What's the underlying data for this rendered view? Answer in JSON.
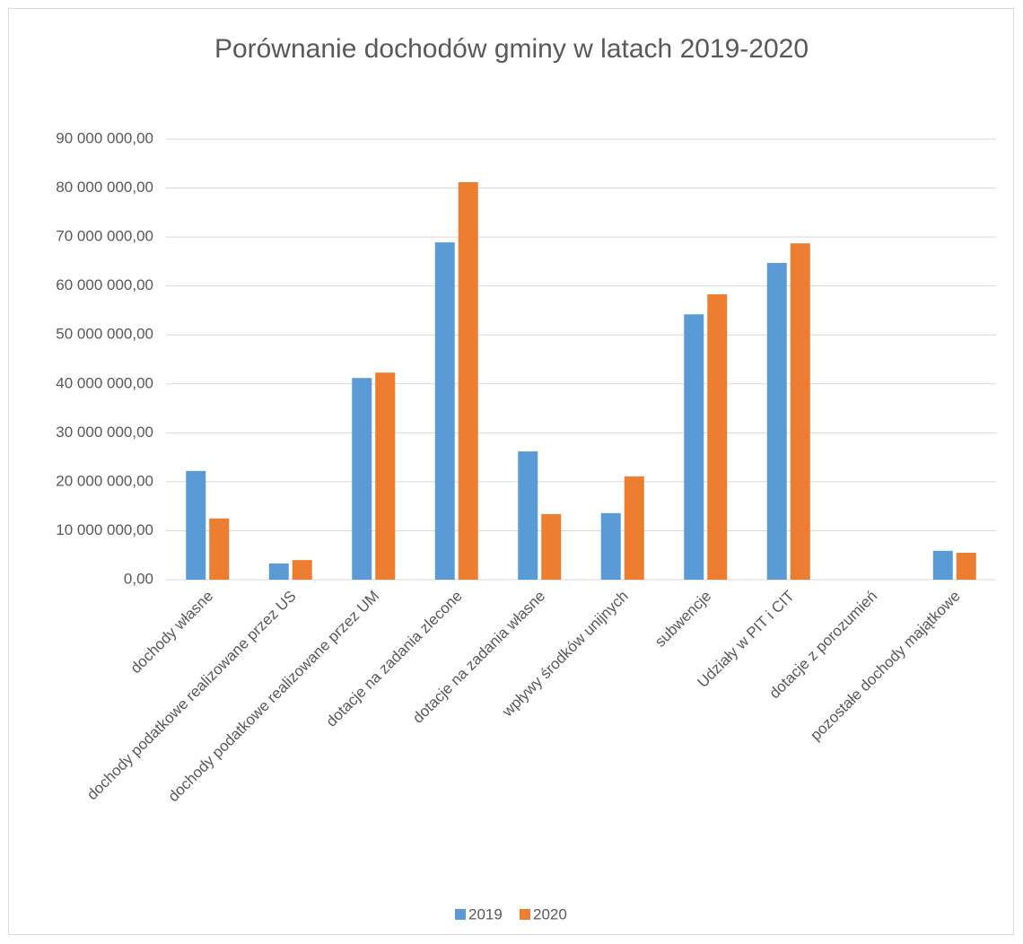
{
  "chart_data": {
    "type": "bar",
    "title": "Porównanie dochodów gminy w latach 2019-2020",
    "categories": [
      "dochody własne",
      "dochody podatkowe realizowane przez US",
      "dochody podatkowe realizowane przez UM",
      "dotacje na zadania zlecone",
      "dotacje na zadania własne",
      "wpływy środków unijnych",
      "subwencje",
      "Udziały w PIT i CIT",
      "dotacje z porozumień",
      "pozostałe dochody majątkowe"
    ],
    "series": [
      {
        "name": "2019",
        "color": "#5b9bd5",
        "values": [
          22200000,
          3300000,
          41200000,
          68900000,
          26200000,
          13600000,
          54200000,
          64700000,
          0,
          5900000
        ]
      },
      {
        "name": "2020",
        "color": "#ed7d31",
        "values": [
          12500000,
          4000000,
          42300000,
          81200000,
          13400000,
          21100000,
          58300000,
          68700000,
          0,
          5500000
        ]
      }
    ],
    "ylim": [
      0,
      90000000
    ],
    "yticks": [
      {
        "value": 0,
        "label": "0,00"
      },
      {
        "value": 10000000,
        "label": "10 000 000,00"
      },
      {
        "value": 20000000,
        "label": "20 000 000,00"
      },
      {
        "value": 30000000,
        "label": "30 000 000,00"
      },
      {
        "value": 40000000,
        "label": "40 000 000,00"
      },
      {
        "value": 50000000,
        "label": "50 000 000,00"
      },
      {
        "value": 60000000,
        "label": "60 000 000,00"
      },
      {
        "value": 70000000,
        "label": "70 000 000,00"
      },
      {
        "value": 80000000,
        "label": "80 000 000,00"
      },
      {
        "value": 90000000,
        "label": "90 000 000,00"
      }
    ],
    "grid": true,
    "legend": "bottom"
  }
}
